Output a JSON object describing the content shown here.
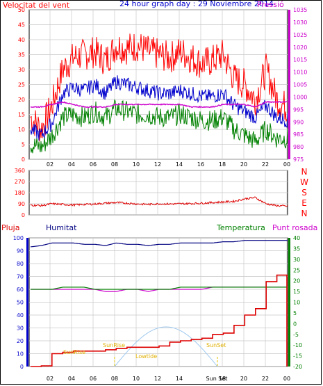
{
  "header": {
    "title": "24 hour graph day : 29 Noviembre 2014",
    "left_label": "Velocitat del vent",
    "right_label": "Pressió"
  },
  "colors": {
    "wind_gust": "#ff0000",
    "wind_avg": "#0000cc",
    "wind_low": "#008000",
    "pressure": "#cc00cc",
    "direction": "#dd0000",
    "humidity": "#000080",
    "temperature": "#008000",
    "dewpoint": "#cc00cc",
    "rain": "#dd0000",
    "solar": "#9fc9f0",
    "grid": "#c8c8c8"
  },
  "x_ticks": [
    "02",
    "04",
    "06",
    "08",
    "10",
    "12",
    "14",
    "16",
    "18",
    "20",
    "22",
    "00"
  ],
  "chart_data": [
    {
      "type": "line",
      "name": "wind",
      "y_ticks_left": [
        "0",
        "5",
        "10",
        "15",
        "20",
        "25",
        "30",
        "35",
        "40",
        "45",
        "50"
      ],
      "y_ticks_right": [
        "975",
        "980",
        "985",
        "990",
        "995",
        "1000",
        "1005",
        "1010",
        "1015",
        "1020",
        "1025",
        "1030",
        "1035"
      ],
      "ylim_left": [
        0,
        50
      ],
      "ylim_right": [
        975,
        1035
      ],
      "x": [
        0,
        1,
        2,
        3,
        4,
        5,
        6,
        7,
        8,
        9,
        10,
        11,
        12,
        13,
        14,
        15,
        16,
        17,
        18,
        19,
        20,
        21,
        22,
        23,
        24
      ],
      "series": [
        {
          "values": [
            14,
            10,
            18,
            30,
            34,
            35,
            36,
            33,
            38,
            37,
            38,
            36,
            35,
            34,
            36,
            34,
            32,
            33,
            35,
            27,
            25,
            20,
            30,
            20,
            17
          ]
        },
        {
          "values": [
            10,
            8,
            12,
            22,
            24,
            23,
            25,
            22,
            26,
            25,
            24,
            23,
            22,
            22,
            23,
            22,
            21,
            21,
            22,
            18,
            16,
            14,
            18,
            14,
            13
          ]
        },
        {
          "values": [
            5,
            4,
            8,
            14,
            15,
            14,
            16,
            14,
            17,
            16,
            15,
            15,
            14,
            14,
            15,
            14,
            13,
            13,
            14,
            10,
            8,
            6,
            10,
            7,
            7
          ]
        },
        {
          "values": [
            996,
            996,
            997,
            998,
            997,
            996,
            996,
            996,
            997,
            997,
            997,
            997,
            997,
            997,
            997,
            996,
            996,
            996,
            997,
            997,
            997,
            996,
            998,
            998,
            998
          ]
        }
      ]
    },
    {
      "type": "line",
      "name": "direction",
      "y_ticks_left": [
        "0",
        "90",
        "180",
        "270",
        "360"
      ],
      "y_ticks_right": [
        "N",
        "W",
        "S",
        "E",
        "N"
      ],
      "ylim_left": [
        0,
        360
      ],
      "x": [
        0,
        1,
        2,
        3,
        4,
        5,
        6,
        7,
        8,
        9,
        10,
        11,
        12,
        13,
        14,
        15,
        16,
        17,
        18,
        19,
        20,
        21,
        22,
        23,
        24
      ],
      "series": [
        {
          "values": [
            80,
            75,
            90,
            85,
            80,
            85,
            88,
            95,
            100,
            95,
            88,
            85,
            90,
            88,
            90,
            92,
            95,
            100,
            105,
            110,
            130,
            140,
            90,
            75,
            70
          ]
        }
      ]
    },
    {
      "type": "line",
      "name": "rain_humidity_temperature",
      "legend": [
        "Pluja",
        "Humitat",
        "Temperatura",
        "Punt rosada"
      ],
      "y_ticks_left": [
        "0",
        "10",
        "20",
        "30",
        "40",
        "50",
        "60",
        "70",
        "80",
        "90",
        "100"
      ],
      "y_ticks_right": [
        "-20",
        "-15",
        "-10",
        "-5",
        "0",
        "5",
        "10",
        "15",
        "20",
        "25",
        "30",
        "35",
        "40"
      ],
      "ylim_left": [
        0,
        100
      ],
      "ylim_right": [
        -20,
        40
      ],
      "x": [
        0,
        1,
        2,
        3,
        4,
        5,
        6,
        7,
        8,
        9,
        10,
        11,
        12,
        13,
        14,
        15,
        16,
        17,
        18,
        19,
        20,
        21,
        22,
        23,
        24
      ],
      "series": [
        {
          "values": [
            0,
            0.5,
            10,
            11,
            12,
            12,
            12,
            13,
            14,
            15,
            15,
            15,
            16,
            19,
            20,
            21,
            22,
            25,
            26,
            32,
            40,
            45,
            66,
            71,
            71
          ]
        },
        {
          "values": [
            93,
            94,
            96,
            96,
            96,
            95,
            95,
            94,
            96,
            95,
            95,
            94,
            95,
            95,
            96,
            96,
            96,
            96,
            97,
            97,
            98,
            98,
            98,
            98,
            98
          ]
        },
        {
          "values": [
            16,
            16,
            16,
            17,
            17,
            17,
            16,
            16,
            16,
            16,
            16,
            16,
            16,
            16,
            17,
            17,
            17,
            17,
            17,
            17,
            17,
            17,
            17,
            17,
            17
          ]
        },
        {
          "values": [
            16,
            16,
            16,
            16,
            16,
            16,
            16,
            15,
            15,
            16,
            16,
            15,
            16,
            16,
            16,
            16,
            16,
            17,
            17,
            17,
            17,
            17,
            17,
            17,
            17
          ]
        }
      ]
    }
  ],
  "annotations": {
    "sunrise": "SunRise",
    "sunset": "SunSet",
    "lowtide": "Lowtide",
    "sunset_tick": "Sun Set"
  }
}
